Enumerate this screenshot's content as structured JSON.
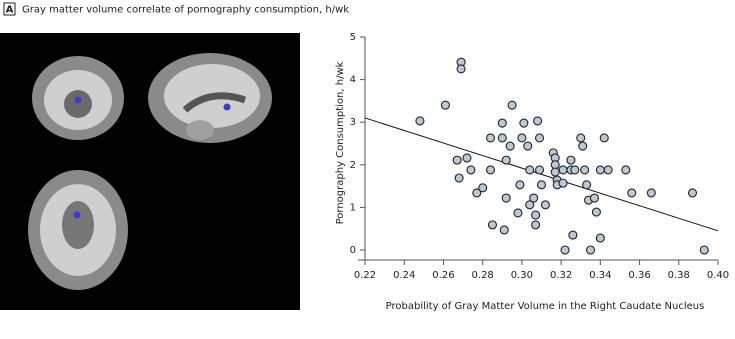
{
  "header": {
    "panel_label": "A",
    "title": "Gray matter volume correlate of pornography consumption, h/wk"
  },
  "chart_data": {
    "type": "scatter",
    "xlabel": "Probability of Gray Matter Volume in the Right Caudate Nucleus",
    "ylabel": "Pornography Consumption, h/wk",
    "xlim": [
      0.22,
      0.4
    ],
    "ylim": [
      0,
      5
    ],
    "xticks": [
      0.22,
      0.24,
      0.26,
      0.28,
      {
        "value": 0.3,
        "label": "0.30"
      },
      0.32,
      0.34,
      0.36,
      0.38,
      {
        "value": 0.4,
        "label": "0.40"
      }
    ],
    "yticks": [
      0,
      1,
      2,
      3,
      4,
      5
    ],
    "color": "#b9c9d6",
    "x": [
      0.248,
      0.261,
      0.269,
      0.269,
      0.267,
      0.272,
      0.268,
      0.274,
      0.277,
      0.28,
      0.284,
      0.284,
      0.285,
      0.29,
      0.29,
      0.292,
      0.294,
      0.295,
      0.292,
      0.291,
      0.298,
      0.299,
      0.3,
      0.301,
      0.303,
      0.304,
      0.304,
      0.306,
      0.307,
      0.307,
      0.308,
      0.309,
      0.309,
      0.31,
      0.312,
      0.316,
      0.317,
      0.317,
      0.317,
      0.318,
      0.318,
      0.321,
      0.321,
      0.322,
      0.325,
      0.325,
      0.326,
      0.327,
      0.33,
      0.331,
      0.332,
      0.333,
      0.334,
      0.335,
      0.337,
      0.338,
      0.34,
      0.34,
      0.342,
      0.344,
      0.353,
      0.356,
      0.366,
      0.387,
      0.393
    ],
    "values": [
      3.03,
      3.4,
      4.41,
      4.25,
      2.11,
      2.16,
      1.69,
      1.88,
      1.34,
      1.46,
      1.88,
      2.63,
      0.59,
      2.98,
      2.63,
      2.11,
      2.44,
      3.4,
      1.22,
      0.47,
      0.87,
      1.53,
      2.63,
      2.98,
      2.44,
      1.88,
      1.06,
      1.22,
      0.82,
      0.59,
      3.03,
      2.63,
      1.88,
      1.53,
      1.06,
      2.28,
      2.16,
      2.0,
      1.83,
      1.64,
      1.53,
      1.88,
      1.57,
      0.0,
      1.88,
      2.11,
      0.35,
      1.88,
      2.63,
      2.44,
      1.88,
      1.53,
      1.17,
      0.0,
      1.22,
      0.89,
      1.88,
      0.28,
      2.63,
      1.88,
      1.88,
      1.34,
      1.34,
      1.34,
      0.0
    ],
    "trend_line": {
      "x": [
        0.22,
        0.4
      ],
      "y": [
        3.1,
        0.45
      ]
    }
  }
}
